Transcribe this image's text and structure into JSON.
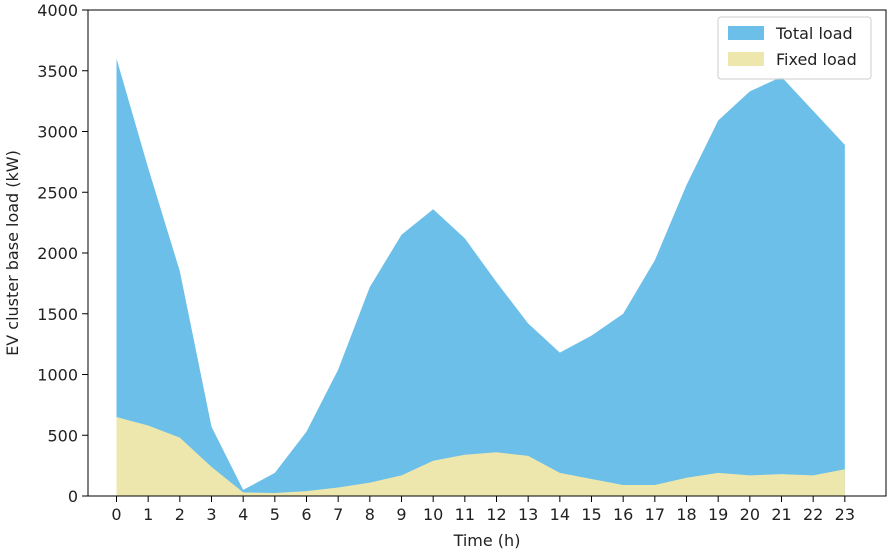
{
  "chart_data": {
    "type": "area",
    "xlabel": "Time (h)",
    "ylabel": "EV cluster base load (kW)",
    "x": [
      0,
      1,
      2,
      3,
      4,
      5,
      6,
      7,
      8,
      9,
      10,
      11,
      12,
      13,
      14,
      15,
      16,
      17,
      18,
      19,
      20,
      21,
      22,
      23
    ],
    "xlim": [
      -0.9,
      24.3
    ],
    "ylim": [
      0,
      4000
    ],
    "yticks": [
      0,
      500,
      1000,
      1500,
      2000,
      2500,
      3000,
      3500,
      4000
    ],
    "grid": false,
    "legend_position": "top-right",
    "series": [
      {
        "name": "Total load",
        "color": "#6bbfe8",
        "values": [
          3600,
          2700,
          1850,
          570,
          50,
          190,
          530,
          1040,
          1720,
          2150,
          2360,
          2120,
          1760,
          1420,
          1180,
          1320,
          1500,
          1940,
          2560,
          3090,
          3330,
          3450,
          3170,
          2890
        ]
      },
      {
        "name": "Fixed load",
        "color": "#ede7ad",
        "values": [
          650,
          580,
          480,
          240,
          30,
          25,
          40,
          70,
          110,
          170,
          290,
          340,
          360,
          330,
          190,
          140,
          90,
          90,
          150,
          190,
          170,
          180,
          170,
          220
        ]
      }
    ]
  }
}
